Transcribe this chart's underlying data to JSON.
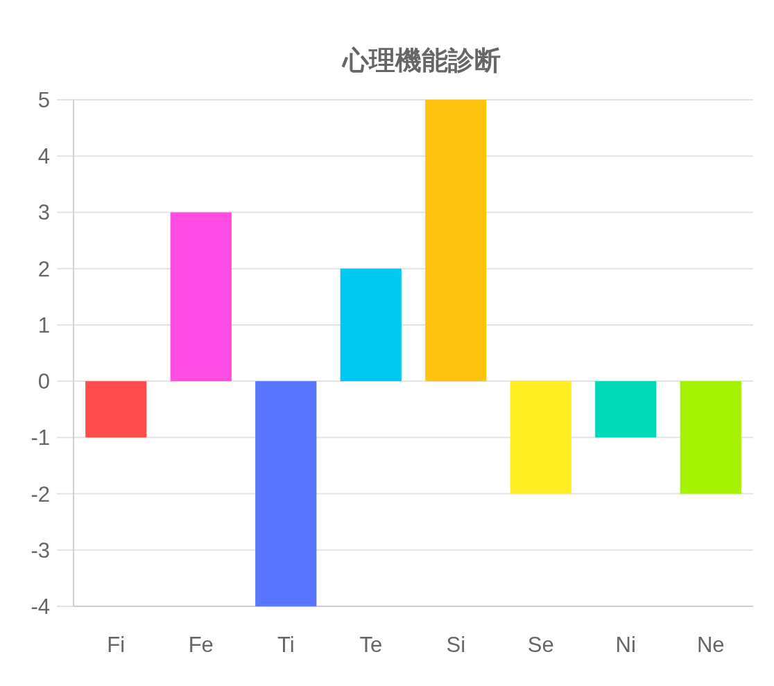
{
  "chart_data": {
    "type": "bar",
    "title": "心理機能診断",
    "categories": [
      "Fi",
      "Fe",
      "Ti",
      "Te",
      "Si",
      "Se",
      "Ni",
      "Ne"
    ],
    "values": [
      -1,
      3,
      -4,
      2,
      5,
      -2,
      -1,
      -2
    ],
    "colors": [
      "#ff4d4d",
      "#ff4de3",
      "#5a75ff",
      "#00c9f1",
      "#fec30f",
      "#ffee22",
      "#00d9b8",
      "#a4f200"
    ],
    "ylim": [
      -4,
      5
    ],
    "yticks": [
      -4,
      -3,
      -2,
      -1,
      0,
      1,
      2,
      3,
      4,
      5
    ],
    "grid": "y"
  }
}
